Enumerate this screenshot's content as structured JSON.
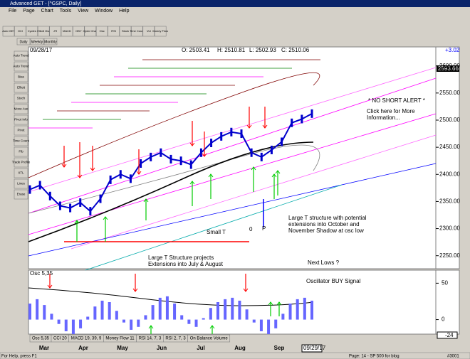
{
  "window": {
    "title": "Advanced GET - [^GSPC, Daily]",
    "menu": [
      "File",
      "Page",
      "Chart",
      "Tools",
      "View",
      "Window",
      "Help"
    ]
  },
  "toolbar": [
    "Auto GET",
    "OCI",
    "Cycles",
    "Elliott Osc",
    "JTI",
    "MACD",
    "OBY",
    "Open Chart",
    "Osc",
    "RSI",
    "Stock",
    "Time Count",
    "Vol",
    "Money Flow"
  ],
  "timeframes": [
    "Daily",
    "Weekly",
    "Monthly"
  ],
  "left_tools": [
    "Auto Trend",
    "Auto Trend",
    "Bias",
    "Elliott",
    "Stoch",
    "Move Ave",
    "Pivot Info",
    "Pivot",
    "Time Count",
    "Fib",
    "Trade Profile",
    "XTL",
    "Lines",
    "Erase"
  ],
  "header": {
    "date": "09/28/17",
    "open": "O: 2503.41",
    "high": "H: 2510.81",
    "low": "L: 2502.93",
    "close": "C: 2510.06",
    "change": "+3.02",
    "last": "2593.66"
  },
  "price_chart": {
    "ylim": [
      2226,
      2635
    ],
    "yticks": [
      {
        "value": 2600,
        "label": "2600.00"
      },
      {
        "value": 2550,
        "label": "2550.00"
      },
      {
        "value": 2500,
        "label": "2500.00"
      },
      {
        "value": 2450,
        "label": "2450.00"
      },
      {
        "value": 2400,
        "label": "2400.00"
      },
      {
        "value": 2350,
        "label": "2350.00"
      },
      {
        "value": 2300,
        "label": "2300.00"
      },
      {
        "value": 2250,
        "label": "2250.00"
      }
    ],
    "close": [
      2372,
      2380,
      2360,
      2342,
      2338,
      2348,
      2332,
      2355,
      2390,
      2400,
      2392,
      2420,
      2432,
      2440,
      2428,
      2425,
      2418,
      2440,
      2458,
      2470,
      2478,
      2475,
      2440,
      2432,
      2445,
      2460,
      2495,
      2502,
      2512
    ]
  },
  "annotations": {
    "alert": "* NO SHORT ALERT *",
    "info": "Click here for More Information...",
    "large_t_right": "Large T structure with potential extensions into October and November Shadow at osc low",
    "small_t": "Small T",
    "zero": "0",
    "p": "P",
    "large_t_left": "Large T Structure projects Extensions into July & August",
    "next_lows": "Next Lows ?",
    "osc_buy": "Oscillator BUY Signal"
  },
  "oscillator": {
    "name": "Osc 5,35",
    "ylim": [
      -18,
      66
    ],
    "yticks": [
      50,
      0
    ],
    "current": "-24",
    "values": [
      22,
      28,
      20,
      8,
      -6,
      -16,
      -20,
      -12,
      4,
      18,
      26,
      24,
      12,
      -4,
      -14,
      -10,
      6,
      20,
      30,
      32,
      22,
      6,
      -6,
      -10,
      2,
      16,
      24,
      28,
      30,
      26,
      14,
      -4,
      -16,
      -20,
      -12,
      8,
      22,
      28,
      30,
      26
    ]
  },
  "indicator_tabs": [
    "Osc 5,35",
    "CCI 20",
    "MACD 19, 39, 9",
    "Money Flow 11",
    "RSI 14, 7, 3",
    "RSI 2, 7, 3",
    "On Balance Volume"
  ],
  "months": [
    "Mar",
    "Apr",
    "May",
    "Jun",
    "Jul",
    "Aug",
    "Sep"
  ],
  "end_date": "09/29/17",
  "status": {
    "help": "For Help, press F1",
    "page": "Page: 14 - SP 500 for blog",
    "code": "#3001"
  }
}
